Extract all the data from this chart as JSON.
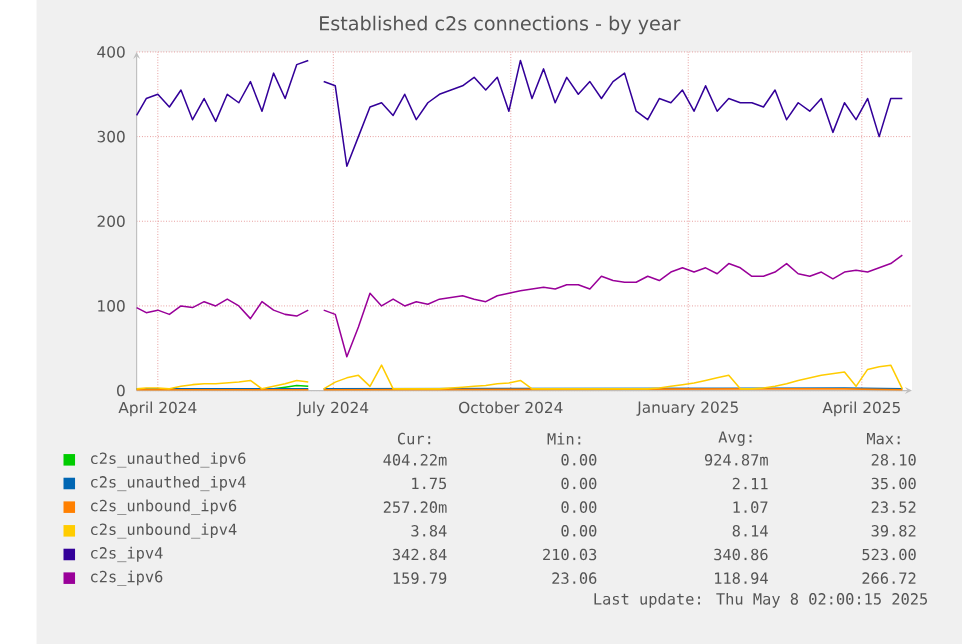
{
  "chart_data": {
    "type": "line",
    "title": "Established c2s connections - by year",
    "x": [
      "2024-03-21",
      "2024-03-26",
      "2024-04-01",
      "2024-04-07",
      "2024-04-13",
      "2024-04-19",
      "2024-04-25",
      "2024-05-01",
      "2024-05-07",
      "2024-05-13",
      "2024-05-19",
      "2024-05-25",
      "2024-05-31",
      "2024-06-06",
      "2024-06-12",
      "2024-06-18",
      "2024-06-22",
      "2024-06-26",
      "2024-07-02",
      "2024-07-08",
      "2024-07-14",
      "2024-07-20",
      "2024-07-26",
      "2024-08-01",
      "2024-08-07",
      "2024-08-13",
      "2024-08-19",
      "2024-08-25",
      "2024-08-31",
      "2024-09-06",
      "2024-09-12",
      "2024-09-18",
      "2024-09-24",
      "2024-09-30",
      "2024-10-06",
      "2024-10-12",
      "2024-10-18",
      "2024-10-24",
      "2024-10-30",
      "2024-11-05",
      "2024-11-11",
      "2024-11-17",
      "2024-11-23",
      "2024-11-29",
      "2024-12-05",
      "2024-12-11",
      "2024-12-17",
      "2024-12-23",
      "2024-12-29",
      "2025-01-04",
      "2025-01-10",
      "2025-01-16",
      "2025-01-22",
      "2025-01-28",
      "2025-02-03",
      "2025-02-09",
      "2025-02-15",
      "2025-02-21",
      "2025-02-27",
      "2025-03-05",
      "2025-03-11",
      "2025-03-17",
      "2025-03-23",
      "2025-03-29",
      "2025-04-04",
      "2025-04-10",
      "2025-04-16",
      "2025-04-22"
    ],
    "xlim": [
      "2024-03-21",
      "2025-04-27"
    ],
    "xticks": [
      {
        "value": "2024-04-01",
        "label": "April 2024"
      },
      {
        "value": "2024-07-01",
        "label": "July 2024"
      },
      {
        "value": "2024-10-01",
        "label": "October 2024"
      },
      {
        "value": "2025-01-01",
        "label": "January 2025"
      },
      {
        "value": "2025-04-01",
        "label": "April 2025"
      }
    ],
    "ylim": [
      0,
      400
    ],
    "yticks": [
      0,
      100,
      200,
      300,
      400
    ],
    "grid": true,
    "legend": "bottom",
    "marker": "none",
    "line_style": "solid",
    "series": [
      {
        "name": "c2s_unauthed_ipv6",
        "color": "#00cc00",
        "x": [
          "2024-05-31",
          "2024-06-06",
          "2024-06-12",
          "2024-06-18"
        ],
        "values": [
          2,
          4,
          6,
          5
        ]
      },
      {
        "name": "c2s_unauthed_ipv4",
        "color": "#0066b3",
        "x": [
          "2024-03-21",
          "2024-06-18",
          "2024-06-22",
          "2024-06-26",
          "2025-03-23",
          "2025-04-22"
        ],
        "values": [
          2,
          2,
          null,
          2,
          3,
          2
        ]
      },
      {
        "name": "c2s_unbound_ipv6",
        "color": "#ff8000",
        "x": [
          "2024-03-21",
          "2024-06-18",
          "2024-06-22",
          "2024-06-26",
          "2025-02-15",
          "2025-03-23",
          "2025-04-22"
        ],
        "values": [
          1,
          1,
          null,
          1,
          2,
          2,
          1
        ]
      },
      {
        "name": "c2s_unbound_ipv4",
        "color": "#ffcc00",
        "values": [
          2,
          3,
          3,
          2,
          5,
          7,
          8,
          8,
          9,
          10,
          12,
          2,
          5,
          8,
          12,
          10,
          null,
          2,
          10,
          15,
          18,
          5,
          30,
          2,
          2,
          2,
          2,
          2,
          3,
          4,
          5,
          6,
          8,
          9,
          12,
          2,
          2,
          2,
          2,
          2,
          2,
          2,
          2,
          2,
          2,
          2,
          3,
          5,
          7,
          9,
          12,
          15,
          18,
          2,
          2,
          3,
          5,
          8,
          12,
          15,
          18,
          20,
          22,
          5,
          25,
          28,
          30,
          2
        ]
      },
      {
        "name": "c2s_ipv4",
        "color": "#330099",
        "values": [
          325,
          345,
          350,
          335,
          355,
          320,
          345,
          318,
          350,
          340,
          365,
          330,
          375,
          345,
          385,
          390,
          null,
          365,
          360,
          265,
          300,
          335,
          340,
          325,
          350,
          320,
          340,
          350,
          355,
          360,
          370,
          355,
          370,
          330,
          390,
          345,
          380,
          340,
          370,
          350,
          365,
          345,
          365,
          375,
          330,
          320,
          345,
          340,
          355,
          330,
          360,
          330,
          345,
          340,
          340,
          335,
          355,
          320,
          340,
          330,
          345,
          305,
          340,
          320,
          345,
          300,
          345,
          345
        ]
      },
      {
        "name": "c2s_ipv6",
        "color": "#990099",
        "values": [
          98,
          92,
          95,
          90,
          100,
          98,
          105,
          100,
          108,
          100,
          85,
          105,
          95,
          90,
          88,
          95,
          null,
          95,
          90,
          40,
          75,
          115,
          100,
          108,
          100,
          105,
          102,
          108,
          110,
          112,
          108,
          105,
          112,
          115,
          118,
          120,
          122,
          120,
          125,
          125,
          120,
          135,
          130,
          128,
          128,
          135,
          130,
          140,
          145,
          140,
          145,
          138,
          150,
          145,
          135,
          135,
          140,
          150,
          138,
          135,
          140,
          132,
          140,
          142,
          140,
          145,
          150,
          160
        ]
      }
    ],
    "annotations": [
      "Cur:",
      "Min:",
      "Avg:",
      "Max:",
      "404.22m",
      "0.00",
      "924.87m",
      "28.10",
      "1.75",
      "0.00",
      "2.11",
      "35.00",
      "257.20m",
      "0.00",
      "1.07",
      "23.52",
      "3.84",
      "0.00",
      "8.14",
      "39.82",
      "342.84",
      "210.03",
      "340.86",
      "523.00",
      "159.79",
      "23.06",
      "118.94",
      "266.72",
      "Last update: Thu May  8 02:00:15 2025"
    ]
  }
}
